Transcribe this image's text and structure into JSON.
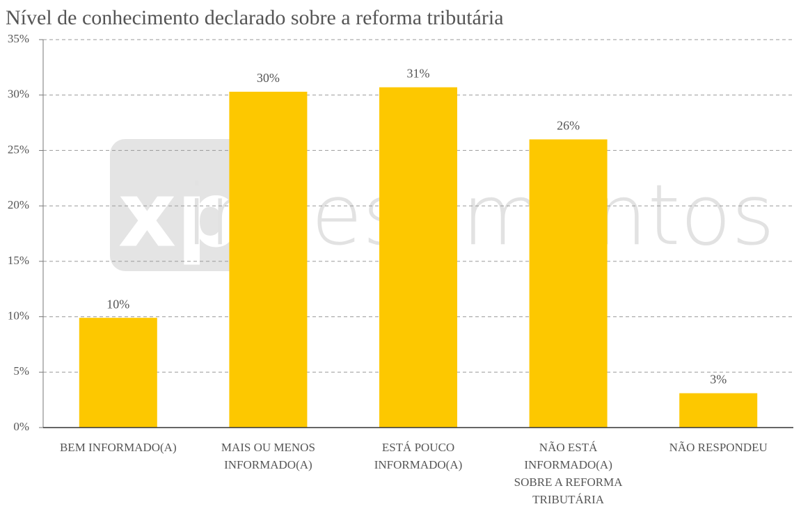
{
  "chart_data": {
    "type": "bar",
    "title": "Nível de conhecimento declarado sobre a reforma tributária",
    "categories": [
      "BEM INFORMADO(A)",
      "MAIS OU MENOS INFORMADO(A)",
      "ESTÁ POUCO INFORMADO(A)",
      "NÃO ESTÁ INFORMADO(A) SOBRE A REFORMA TRIBUTÁRIA",
      "NÃO RESPONDEU"
    ],
    "values": [
      9.9,
      30.3,
      30.7,
      26,
      3.1
    ],
    "value_labels": [
      "10%",
      "30%",
      "31%",
      "26%",
      "3%"
    ],
    "color": "#fdc800",
    "ylim": [
      0,
      35
    ],
    "yticks": [
      {
        "value": 0,
        "label": "0%"
      },
      {
        "value": 5,
        "label": "5%"
      },
      {
        "value": 10,
        "label": "10%"
      },
      {
        "value": 15,
        "label": "15%"
      },
      {
        "value": 20,
        "label": "20%"
      },
      {
        "value": 25,
        "label": "25%"
      },
      {
        "value": 30,
        "label": "30%"
      },
      {
        "value": 35,
        "label": "35%"
      }
    ],
    "grid": true,
    "watermark": {
      "logo": "xp",
      "text": "investimentos"
    }
  }
}
